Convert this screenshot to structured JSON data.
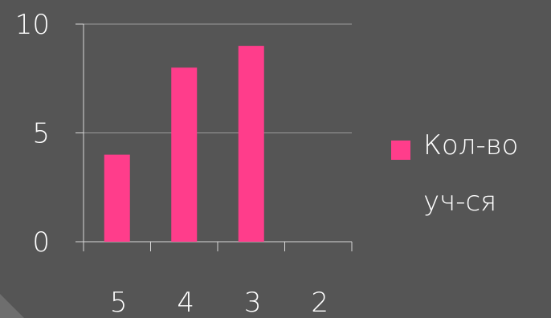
{
  "chart_data": {
    "type": "bar",
    "categories": [
      "5",
      "4",
      "3",
      "2"
    ],
    "series": [
      {
        "name": "Кол-во уч-ся",
        "values": [
          4,
          8,
          9,
          0
        ]
      }
    ],
    "ylim": [
      0,
      10
    ],
    "yticks": [
      "0",
      "5",
      "10"
    ],
    "grid": true,
    "legend_position": "right",
    "colors": {
      "bar": "#ff3d8b",
      "background": "#555555",
      "axis": "#d8d8d8",
      "grid": "#9a9a9a",
      "text": "#ffffff"
    }
  },
  "legend": {
    "label": "Кол-во\nуч-ся"
  }
}
